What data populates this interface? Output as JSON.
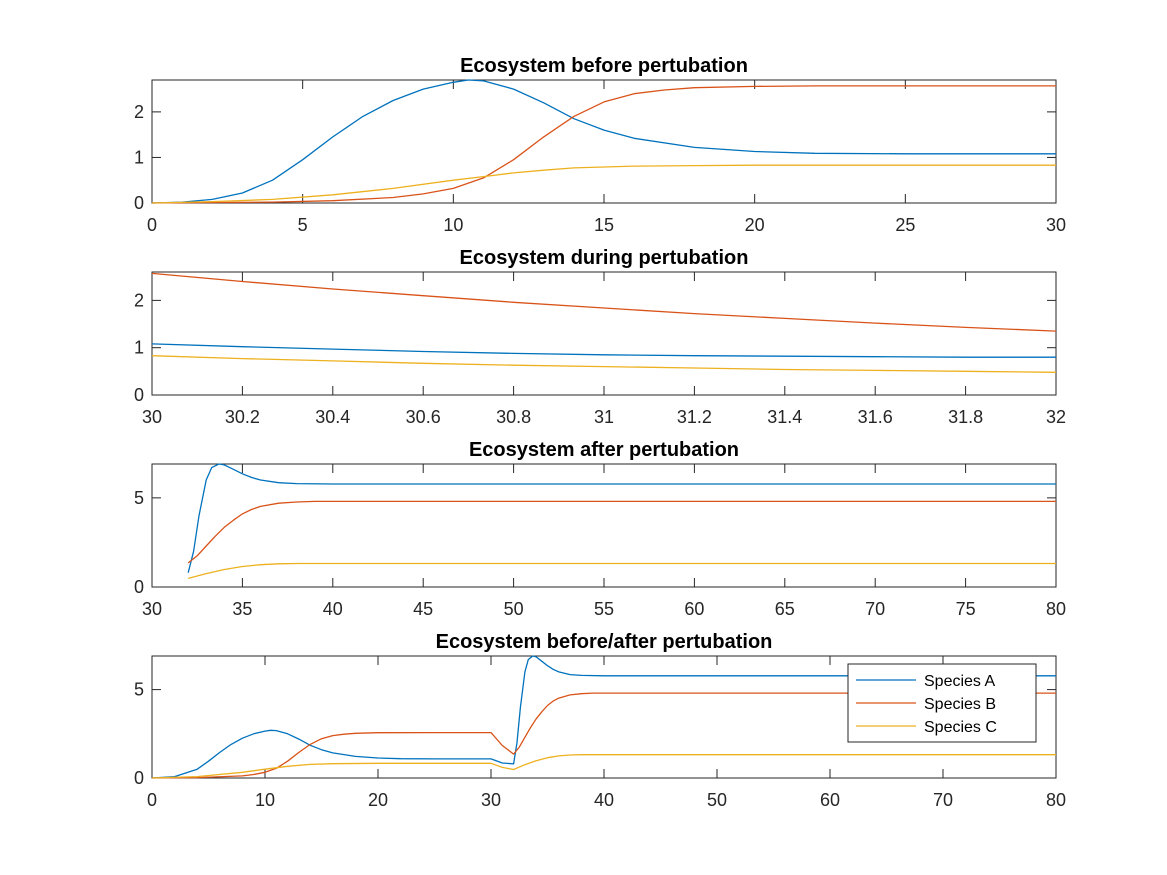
{
  "chart_data": [
    {
      "type": "line",
      "title": "Ecosystem before pertubation",
      "xlabel": "",
      "ylabel": "",
      "xlim": [
        0,
        30
      ],
      "ylim": [
        0,
        2.7
      ],
      "xticks": [
        0,
        5,
        10,
        15,
        20,
        25,
        30
      ],
      "xtick_labels": [
        "0",
        "5",
        "10",
        "15",
        "20",
        "25",
        "30"
      ],
      "yticks": [
        0,
        1,
        2
      ],
      "ytick_labels": [
        "0",
        "1",
        "2"
      ],
      "grid": false,
      "series": [
        {
          "color": "#0072BD",
          "x": [
            0,
            1,
            2,
            3,
            4,
            5,
            6,
            7,
            8,
            9,
            10,
            10.5,
            11,
            12,
            13,
            14,
            15,
            16,
            18,
            20,
            22,
            25,
            28,
            30
          ],
          "y": [
            0,
            0.02,
            0.08,
            0.22,
            0.5,
            0.95,
            1.45,
            1.9,
            2.25,
            2.5,
            2.65,
            2.7,
            2.68,
            2.5,
            2.2,
            1.85,
            1.6,
            1.42,
            1.22,
            1.13,
            1.09,
            1.08,
            1.08,
            1.08
          ]
        },
        {
          "color": "#D95319",
          "x": [
            0,
            2,
            4,
            6,
            8,
            9,
            10,
            11,
            12,
            13,
            14,
            15,
            16,
            17,
            18,
            20,
            22,
            25,
            30
          ],
          "y": [
            0,
            0.01,
            0.02,
            0.05,
            0.12,
            0.2,
            0.32,
            0.55,
            0.95,
            1.45,
            1.9,
            2.22,
            2.4,
            2.48,
            2.53,
            2.56,
            2.57,
            2.57,
            2.57
          ]
        },
        {
          "color": "#EDB120",
          "x": [
            0,
            2,
            4,
            6,
            8,
            10,
            11,
            12,
            13,
            14,
            15,
            16,
            18,
            20,
            25,
            30
          ],
          "y": [
            0,
            0.03,
            0.08,
            0.18,
            0.32,
            0.5,
            0.58,
            0.66,
            0.72,
            0.77,
            0.79,
            0.81,
            0.82,
            0.83,
            0.83,
            0.83
          ]
        }
      ]
    },
    {
      "type": "line",
      "title": "Ecosystem during pertubation",
      "xlabel": "",
      "ylabel": "",
      "xlim": [
        30,
        32
      ],
      "ylim": [
        0,
        2.6
      ],
      "xticks": [
        30,
        30.2,
        30.4,
        30.6,
        30.8,
        31,
        31.2,
        31.4,
        31.6,
        31.8,
        32
      ],
      "xtick_labels": [
        "30",
        "30.2",
        "30.4",
        "30.6",
        "30.8",
        "31",
        "31.2",
        "31.4",
        "31.6",
        "31.8",
        "32"
      ],
      "yticks": [
        0,
        1,
        2
      ],
      "ytick_labels": [
        "0",
        "1",
        "2"
      ],
      "grid": false,
      "series": [
        {
          "color": "#0072BD",
          "x": [
            30,
            30.2,
            30.4,
            30.6,
            30.8,
            31,
            31.2,
            31.4,
            31.6,
            31.8,
            32
          ],
          "y": [
            1.08,
            1.02,
            0.97,
            0.92,
            0.88,
            0.85,
            0.83,
            0.82,
            0.81,
            0.8,
            0.8
          ]
        },
        {
          "color": "#D95319",
          "x": [
            30,
            30.2,
            30.4,
            30.6,
            30.8,
            31,
            31.2,
            31.4,
            31.6,
            31.8,
            32
          ],
          "y": [
            2.57,
            2.4,
            2.24,
            2.1,
            1.96,
            1.84,
            1.72,
            1.62,
            1.52,
            1.43,
            1.35
          ]
        },
        {
          "color": "#EDB120",
          "x": [
            30,
            30.2,
            30.4,
            30.6,
            30.8,
            31,
            31.2,
            31.4,
            31.6,
            31.8,
            32
          ],
          "y": [
            0.83,
            0.77,
            0.72,
            0.67,
            0.63,
            0.6,
            0.57,
            0.54,
            0.52,
            0.5,
            0.48
          ]
        }
      ]
    },
    {
      "type": "line",
      "title": "Ecosystem after pertubation",
      "xlabel": "",
      "ylabel": "",
      "xlim": [
        30,
        80
      ],
      "ylim": [
        0,
        6.9
      ],
      "xticks": [
        30,
        35,
        40,
        45,
        50,
        55,
        60,
        65,
        70,
        75,
        80
      ],
      "xtick_labels": [
        "30",
        "35",
        "40",
        "45",
        "50",
        "55",
        "60",
        "65",
        "70",
        "75",
        "80"
      ],
      "yticks": [
        0,
        5
      ],
      "ytick_labels": [
        "0",
        "5"
      ],
      "grid": false,
      "series": [
        {
          "color": "#0072BD",
          "x": [
            32,
            32.3,
            32.6,
            33,
            33.3,
            33.7,
            34,
            34.5,
            35,
            35.5,
            36,
            37,
            38,
            40,
            45,
            80
          ],
          "y": [
            0.8,
            2.0,
            4.0,
            6.0,
            6.7,
            6.9,
            6.85,
            6.6,
            6.35,
            6.15,
            6.0,
            5.85,
            5.8,
            5.78,
            5.78,
            5.78
          ]
        },
        {
          "color": "#D95319",
          "x": [
            32,
            32.5,
            33,
            33.5,
            34,
            34.5,
            35,
            35.5,
            36,
            37,
            38,
            39,
            40,
            45,
            80
          ],
          "y": [
            1.35,
            1.75,
            2.3,
            2.85,
            3.35,
            3.75,
            4.1,
            4.35,
            4.52,
            4.7,
            4.77,
            4.8,
            4.8,
            4.8,
            4.8
          ]
        },
        {
          "color": "#EDB120",
          "x": [
            32,
            33,
            34,
            35,
            36,
            37,
            38,
            40,
            45,
            80
          ],
          "y": [
            0.48,
            0.75,
            0.98,
            1.15,
            1.25,
            1.3,
            1.32,
            1.32,
            1.32,
            1.32
          ]
        }
      ]
    },
    {
      "type": "line",
      "title": "Ecosystem before/after pertubation",
      "xlabel": "",
      "ylabel": "",
      "xlim": [
        0,
        80
      ],
      "ylim": [
        0,
        6.9
      ],
      "xticks": [
        0,
        10,
        20,
        30,
        40,
        50,
        60,
        70,
        80
      ],
      "xtick_labels": [
        "0",
        "10",
        "20",
        "30",
        "40",
        "50",
        "60",
        "70",
        "80"
      ],
      "yticks": [
        0,
        5
      ],
      "ytick_labels": [
        "0",
        "5"
      ],
      "grid": false,
      "legend": {
        "placement": "top-right",
        "labels": [
          "Species A",
          "Species B",
          "Species C"
        ]
      },
      "series": [
        {
          "name": "Species A",
          "color": "#0072BD",
          "x": [
            0,
            2,
            4,
            5,
            6,
            7,
            8,
            9,
            10,
            10.5,
            11,
            12,
            13,
            14,
            15,
            16,
            18,
            20,
            22,
            25,
            30,
            31,
            32,
            32.3,
            32.6,
            33,
            33.3,
            33.7,
            34,
            34.5,
            35,
            35.5,
            36,
            37,
            38,
            40,
            45,
            80
          ],
          "y": [
            0,
            0.08,
            0.5,
            0.95,
            1.45,
            1.9,
            2.25,
            2.5,
            2.65,
            2.7,
            2.68,
            2.5,
            2.2,
            1.85,
            1.6,
            1.42,
            1.22,
            1.13,
            1.09,
            1.08,
            1.08,
            0.85,
            0.8,
            2.0,
            4.0,
            6.0,
            6.7,
            6.9,
            6.85,
            6.6,
            6.35,
            6.15,
            6.0,
            5.85,
            5.8,
            5.78,
            5.78,
            5.78
          ]
        },
        {
          "name": "Species B",
          "color": "#D95319",
          "x": [
            0,
            4,
            8,
            9,
            10,
            11,
            12,
            13,
            14,
            15,
            16,
            17,
            18,
            20,
            25,
            30,
            31,
            32,
            32.5,
            33,
            33.5,
            34,
            34.5,
            35,
            35.5,
            36,
            37,
            38,
            39,
            40,
            45,
            80
          ],
          "y": [
            0,
            0.02,
            0.12,
            0.2,
            0.32,
            0.55,
            0.95,
            1.45,
            1.9,
            2.22,
            2.4,
            2.48,
            2.53,
            2.56,
            2.57,
            2.57,
            1.84,
            1.35,
            1.75,
            2.3,
            2.85,
            3.35,
            3.75,
            4.1,
            4.35,
            4.52,
            4.7,
            4.77,
            4.8,
            4.8,
            4.8,
            4.8
          ]
        },
        {
          "name": "Species C",
          "color": "#EDB120",
          "x": [
            0,
            4,
            8,
            10,
            12,
            14,
            16,
            20,
            25,
            30,
            31,
            32,
            33,
            34,
            35,
            36,
            37,
            38,
            40,
            45,
            80
          ],
          "y": [
            0,
            0.08,
            0.32,
            0.5,
            0.66,
            0.77,
            0.81,
            0.83,
            0.83,
            0.83,
            0.6,
            0.48,
            0.75,
            0.98,
            1.15,
            1.25,
            1.3,
            1.32,
            1.32,
            1.32,
            1.32
          ]
        }
      ]
    }
  ]
}
